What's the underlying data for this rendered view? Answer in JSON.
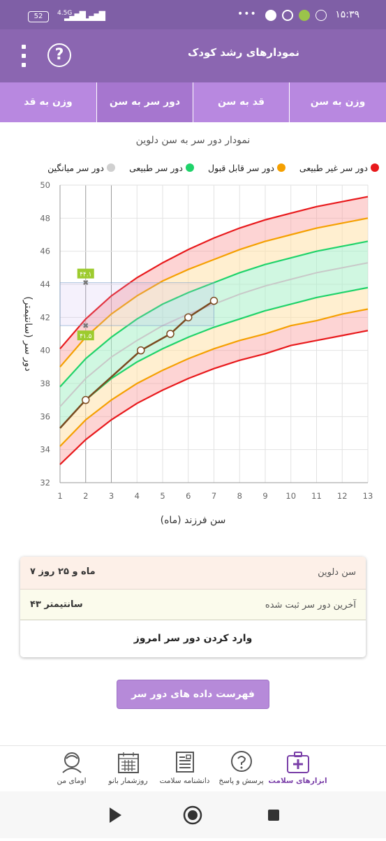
{
  "status_bar": {
    "battery": "52",
    "network": "4.5G",
    "dots": "•••",
    "time": "۱۵:۳۹"
  },
  "app_bar": {
    "title": "نمودارهای رشد کودک",
    "help_icon": "?"
  },
  "tabs": [
    {
      "label": "وزن به سن",
      "active": false
    },
    {
      "label": "قد به سن",
      "active": false
    },
    {
      "label": "دور سر به سن",
      "active": true
    },
    {
      "label": "وزن به قد",
      "active": false
    }
  ],
  "chart_title": "نمودار دور سر به سن دلوین",
  "legend": [
    {
      "label": "دور سر غیر طبیعی",
      "color": "#e8191c"
    },
    {
      "label": "دور سر قابل قبول",
      "color": "#f5a000"
    },
    {
      "label": "دور سر طبیعی",
      "color": "#1fd36a"
    },
    {
      "label": "دور سر میانگین",
      "color": "#d0d0d0"
    }
  ],
  "chart_data": {
    "type": "line",
    "xlabel": "سن فرزند (ماه)",
    "ylabel": "دور سر (سانتیمتر)",
    "xlim": [
      1,
      13
    ],
    "ylim": [
      32,
      50
    ],
    "x_ticks": [
      1,
      2,
      3,
      4,
      5,
      6,
      7,
      8,
      9,
      10,
      11,
      12,
      13
    ],
    "y_ticks": [
      32,
      34,
      36,
      38,
      40,
      42,
      44,
      46,
      48,
      50
    ],
    "x": [
      1,
      2,
      3,
      4,
      5,
      6,
      7,
      8,
      9,
      10,
      11,
      12,
      13
    ],
    "series": [
      {
        "key": "red_upper",
        "color": "#e8191c",
        "values": [
          40.1,
          41.9,
          43.3,
          44.4,
          45.3,
          46.1,
          46.8,
          47.4,
          47.9,
          48.3,
          48.7,
          49.0,
          49.3
        ]
      },
      {
        "key": "orange_upper",
        "color": "#f5a000",
        "values": [
          39.0,
          40.8,
          42.2,
          43.3,
          44.2,
          44.9,
          45.5,
          46.1,
          46.6,
          47.0,
          47.4,
          47.7,
          48.0
        ]
      },
      {
        "key": "green_upper",
        "color": "#1fd36a",
        "values": [
          37.8,
          39.5,
          40.8,
          41.9,
          42.8,
          43.5,
          44.1,
          44.7,
          45.2,
          45.6,
          46.0,
          46.3,
          46.6
        ]
      },
      {
        "key": "mean",
        "color": "#c8c8c8",
        "values": [
          36.6,
          38.3,
          39.6,
          40.6,
          41.5,
          42.2,
          42.8,
          43.4,
          43.9,
          44.3,
          44.7,
          45.0,
          45.3
        ]
      },
      {
        "key": "green_lower",
        "color": "#1fd36a",
        "values": [
          35.3,
          37.0,
          38.3,
          39.3,
          40.1,
          40.8,
          41.4,
          41.9,
          42.4,
          42.8,
          43.2,
          43.5,
          43.8
        ]
      },
      {
        "key": "orange_lower",
        "color": "#f5a000",
        "values": [
          34.2,
          35.8,
          37.0,
          38.0,
          38.8,
          39.5,
          40.1,
          40.6,
          41.0,
          41.5,
          41.8,
          42.2,
          42.5
        ]
      },
      {
        "key": "red_lower",
        "color": "#e8191c",
        "values": [
          33.1,
          34.6,
          35.8,
          36.8,
          37.6,
          38.3,
          38.9,
          39.4,
          39.8,
          40.3,
          40.6,
          40.9,
          41.2
        ]
      },
      {
        "key": "child",
        "color": "#7a4a1f",
        "x": [
          1,
          2,
          4.15,
          5.3,
          6.0,
          7.0
        ],
        "values": [
          35.3,
          37.0,
          40.0,
          41.0,
          42.0,
          43.0
        ]
      }
    ],
    "marker_month": 2,
    "marker_high": {
      "value": 44.1,
      "label": "۴۴.۱"
    },
    "marker_low": {
      "value": 41.5,
      "label": "۴۱.۵"
    },
    "grid": true
  },
  "info_card": {
    "age_label": "سن دلوین",
    "age_value": "۷ ماه و ۲۵ روز",
    "last_label": "آخرین دور سر ثبت شده",
    "last_value": "۴۳ سانتیمتر",
    "enter_label": "وارد کردن دور سر امروز"
  },
  "list_button": "فهرست داده های دور سر دلوین",
  "bottom_nav": [
    {
      "label": "ابزارهای سلامت",
      "icon": "health-kit-icon",
      "active": true
    },
    {
      "label": "پرسش و پاسخ",
      "icon": "question-bubble-icon",
      "active": false
    },
    {
      "label": "دانشنامه سلامت",
      "icon": "encyclopedia-icon",
      "active": false
    },
    {
      "label": "روزشمار بانو",
      "icon": "calendar-icon",
      "active": false
    },
    {
      "label": "اومای من",
      "icon": "profile-icon",
      "active": false
    }
  ]
}
